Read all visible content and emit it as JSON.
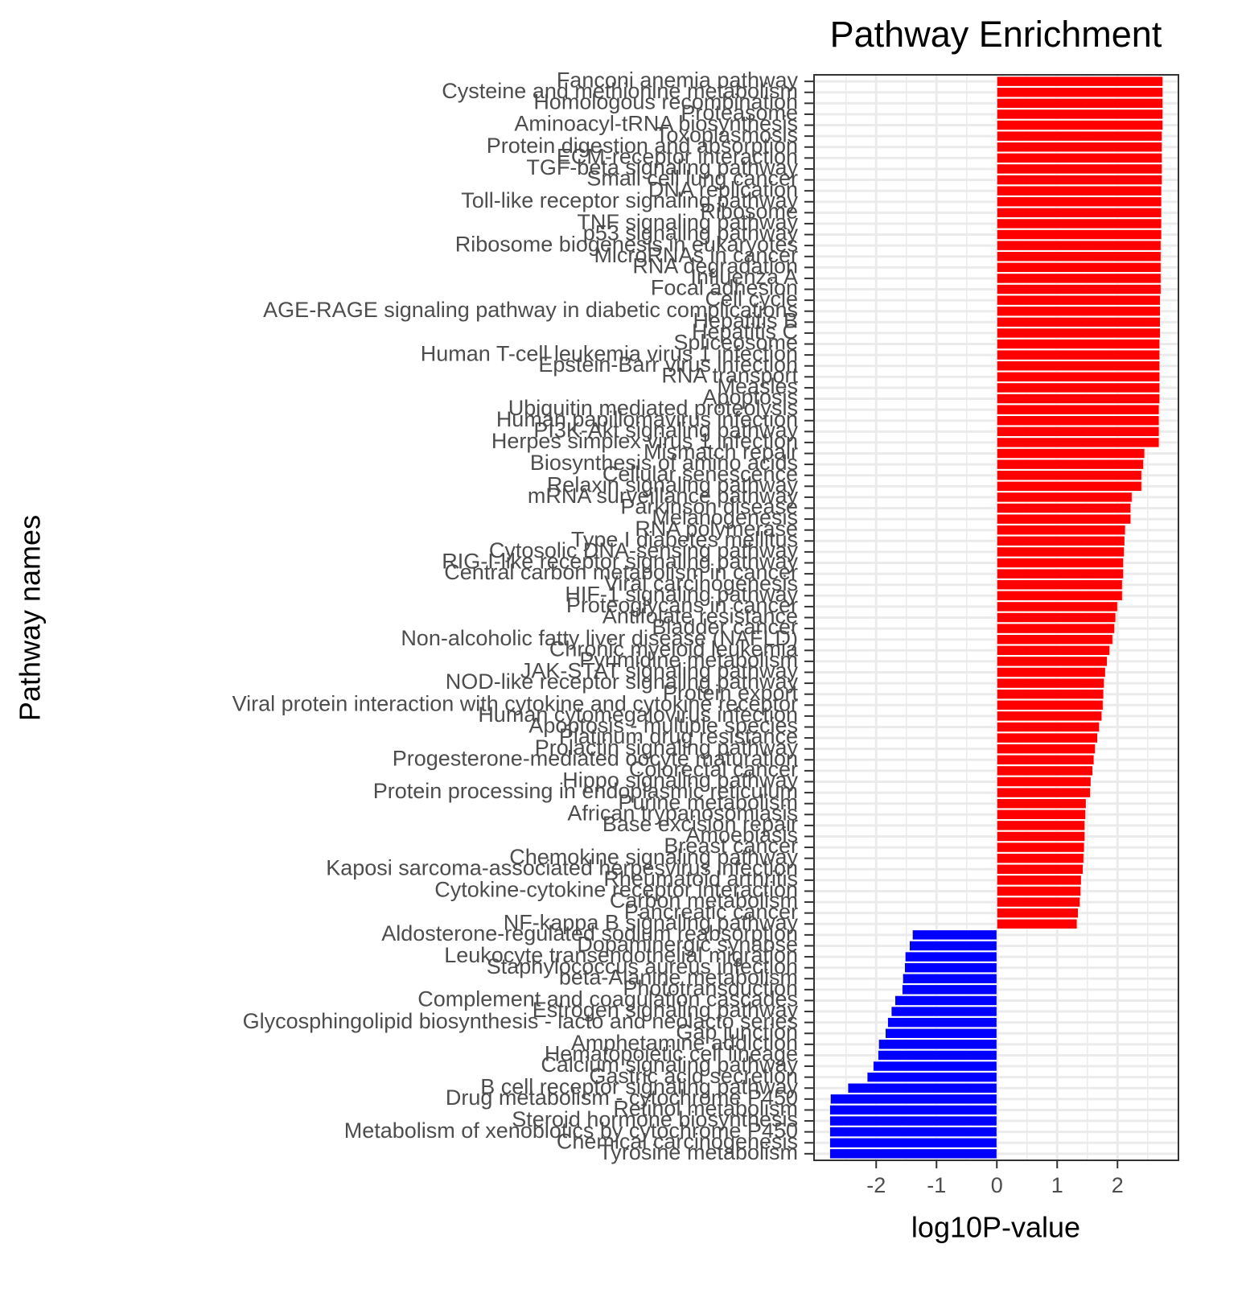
{
  "chart_data": {
    "type": "barh",
    "title": "Pathway Enrichment",
    "x_label": "log10P-value",
    "y_label": "Pathway names",
    "categories": [
      "Fanconi anemia pathway",
      "Cysteine and methionine metabolism",
      "Homologous recombination",
      "Proteasome",
      "Aminoacyl-tRNA biosynthesis",
      "Toxoplasmosis",
      "Protein digestion and absorption",
      "ECM-receptor interaction",
      "TGF-beta signaling pathway",
      "Small cell lung cancer",
      "DNA replication",
      "Toll-like receptor signaling pathway",
      "Ribosome",
      "TNF signaling pathway",
      "p53 signaling pathway",
      "Ribosome biogenesis in eukaryotes",
      "MicroRNAs in cancer",
      "RNA degradation",
      "Influenza A",
      "Focal adhesion",
      "Cell cycle",
      "AGE-RAGE signaling pathway in diabetic complications",
      "Hepatitis B",
      "Hepatitis C",
      "Spliceosome",
      "Human T-cell leukemia virus 1 infection",
      "Epstein-Barr virus infection",
      "RNA transport",
      "Measles",
      "Apoptosis",
      "Ubiquitin mediated proteolysis",
      "Human papillomavirus infection",
      "PI3K-Akt signaling pathway",
      "Herpes simplex virus 1 infection",
      "Mismatch repair",
      "Biosynthesis of amino acids",
      "Cellular senescence",
      "Relaxin signaling pathway",
      "mRNA surveillance pathway",
      "Parkinson disease",
      "Melanogenesis",
      "RNA polymerase",
      "Type I diabetes mellitus",
      "Cytosolic DNA-sensing pathway",
      "RIG-I-like receptor signaling pathway",
      "Central carbon metabolism in cancer",
      "Viral carcinogenesis",
      "HIF-1 signaling pathway",
      "Proteoglycans in cancer",
      "Antifolate resistance",
      "Bladder cancer",
      "Non-alcoholic fatty liver disease (NAFLD)",
      "Chronic myeloid leukemia",
      "Pyrimidine metabolism",
      "JAK-STAT signaling pathway",
      "NOD-like receptor signaling pathway",
      "Protein export",
      "Viral protein interaction with cytokine and cytokine receptor",
      "Human cytomegalovirus infection",
      "Apoptosis - multiple species",
      "Platinum drug resistance",
      "Prolactin signaling pathway",
      "Progesterone-mediated oocyte maturation",
      "Colorectal cancer",
      "Hippo signaling pathway",
      "Protein processing in endoplasmic reticulum",
      "Purine metabolism",
      "African trypanosomiasis",
      "Base excision repair",
      "Amoebiasis",
      "Breast cancer",
      "Chemokine signaling pathway",
      "Kaposi sarcoma-associated herpesvirus infection",
      "Rheumatoid arthritis",
      "Cytokine-cytokine receptor interaction",
      "Carbon metabolism",
      "Pancreatic cancer",
      "NF-kappa B signaling pathway",
      "Aldosterone-regulated sodium reabsorption",
      "Dopaminergic synapse",
      "Leukocyte transendothelial migration",
      "Staphylococcus aureus infection",
      "beta-Alanine metabolism",
      "Phototransduction",
      "Complement and coagulation cascades",
      "Estrogen signaling pathway",
      "Glycosphingolipid biosynthesis - lacto and neolacto series",
      "Gap junction",
      "Amphetamine addiction",
      "Hematopoietic cell lineage",
      "Calcium signaling pathway",
      "Gastric acid secretion",
      "B cell receptor signaling pathway",
      "Drug metabolism - cytochrome P450",
      "Retinol metabolism",
      "Steroid hormone biosynthesis",
      "Metabolism of xenobiotics by cytochrome P450",
      "Chemical carcinogenesis",
      "Tyrosine metabolism"
    ],
    "values": [
      2.75,
      2.75,
      2.75,
      2.75,
      2.75,
      2.74,
      2.74,
      2.74,
      2.74,
      2.74,
      2.73,
      2.73,
      2.73,
      2.73,
      2.73,
      2.72,
      2.72,
      2.72,
      2.72,
      2.72,
      2.71,
      2.71,
      2.71,
      2.71,
      2.7,
      2.7,
      2.7,
      2.7,
      2.7,
      2.7,
      2.69,
      2.69,
      2.69,
      2.69,
      2.45,
      2.43,
      2.4,
      2.4,
      2.24,
      2.22,
      2.22,
      2.13,
      2.12,
      2.11,
      2.1,
      2.1,
      2.08,
      2.08,
      2.0,
      1.97,
      1.95,
      1.92,
      1.87,
      1.83,
      1.8,
      1.78,
      1.77,
      1.76,
      1.74,
      1.7,
      1.67,
      1.63,
      1.61,
      1.59,
      1.56,
      1.55,
      1.48,
      1.47,
      1.46,
      1.46,
      1.45,
      1.44,
      1.43,
      1.4,
      1.39,
      1.38,
      1.35,
      1.33,
      -1.4,
      -1.45,
      -1.52,
      -1.53,
      -1.56,
      -1.57,
      -1.69,
      -1.75,
      -1.81,
      -1.85,
      -1.96,
      -1.97,
      -2.05,
      -2.15,
      -2.47,
      -2.76,
      -2.77,
      -2.77,
      -2.77,
      -2.77,
      -2.77
    ],
    "positive_color": "#ff0000",
    "negative_color": "#0000ff",
    "xlim": [
      -3.03,
      3.01
    ],
    "xticks": [
      -2,
      -1,
      0,
      1,
      2
    ],
    "grid": true
  }
}
